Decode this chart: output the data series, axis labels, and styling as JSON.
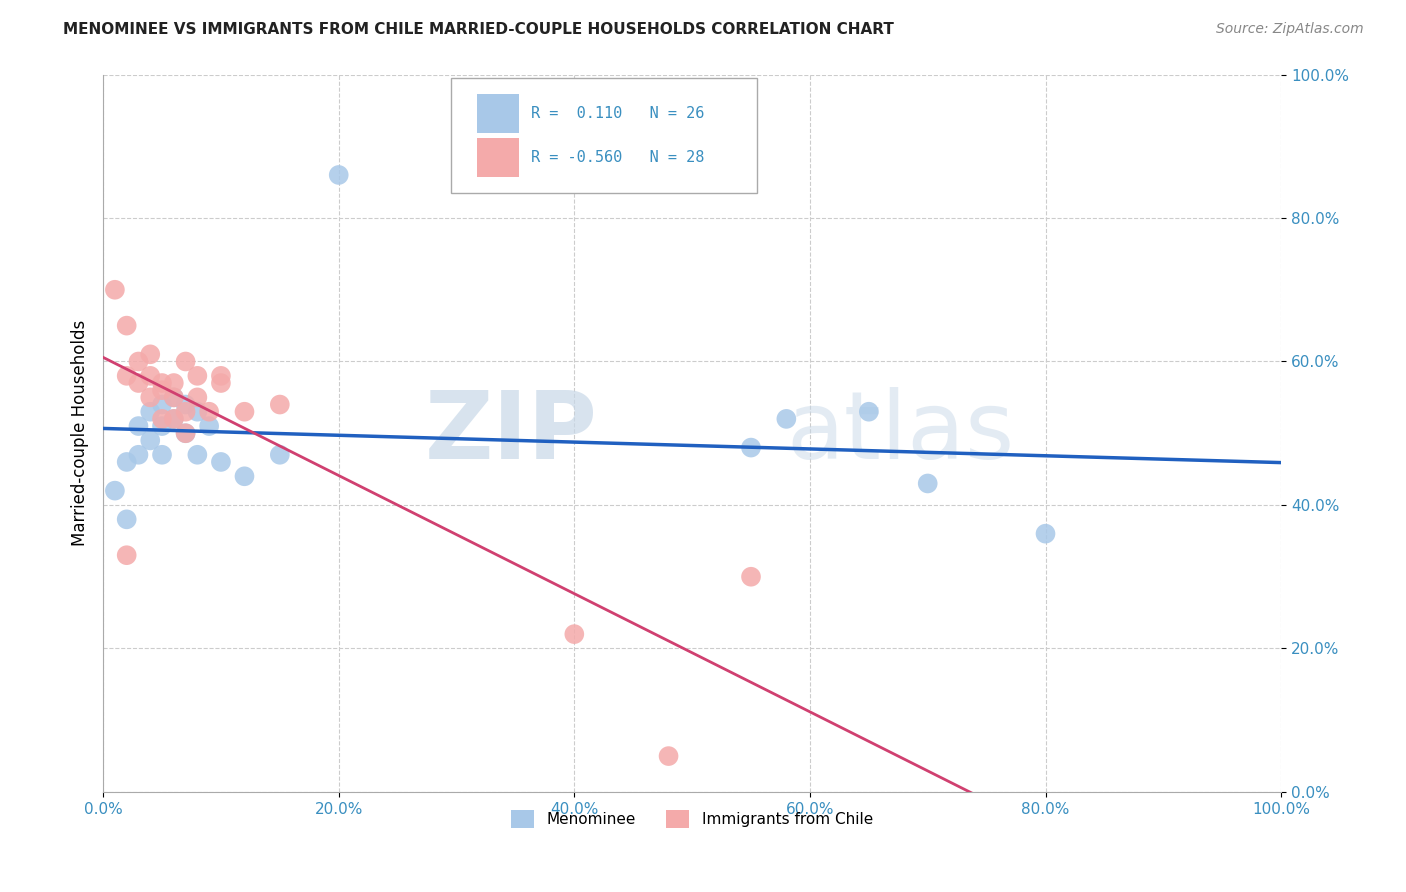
{
  "title": "MENOMINEE VS IMMIGRANTS FROM CHILE MARRIED-COUPLE HOUSEHOLDS CORRELATION CHART",
  "source": "Source: ZipAtlas.com",
  "ylabel": "Married-couple Households",
  "legend_label1": "Menominee",
  "legend_label2": "Immigrants from Chile",
  "R1": 0.11,
  "N1": 26,
  "R2": -0.56,
  "N2": 28,
  "blue_color": "#a8c8e8",
  "pink_color": "#f4aaaa",
  "blue_line_color": "#2060c0",
  "pink_line_color": "#d04070",
  "blue_scatter": [
    [
      0.01,
      0.42
    ],
    [
      0.02,
      0.46
    ],
    [
      0.02,
      0.38
    ],
    [
      0.03,
      0.51
    ],
    [
      0.03,
      0.47
    ],
    [
      0.04,
      0.53
    ],
    [
      0.04,
      0.49
    ],
    [
      0.05,
      0.54
    ],
    [
      0.05,
      0.51
    ],
    [
      0.05,
      0.47
    ],
    [
      0.06,
      0.55
    ],
    [
      0.06,
      0.52
    ],
    [
      0.07,
      0.54
    ],
    [
      0.07,
      0.5
    ],
    [
      0.08,
      0.53
    ],
    [
      0.08,
      0.47
    ],
    [
      0.09,
      0.51
    ],
    [
      0.1,
      0.46
    ],
    [
      0.12,
      0.44
    ],
    [
      0.15,
      0.47
    ],
    [
      0.2,
      0.86
    ],
    [
      0.55,
      0.48
    ],
    [
      0.58,
      0.52
    ],
    [
      0.65,
      0.53
    ],
    [
      0.7,
      0.43
    ],
    [
      0.8,
      0.36
    ]
  ],
  "pink_scatter": [
    [
      0.01,
      0.7
    ],
    [
      0.02,
      0.65
    ],
    [
      0.02,
      0.58
    ],
    [
      0.03,
      0.6
    ],
    [
      0.03,
      0.57
    ],
    [
      0.04,
      0.58
    ],
    [
      0.04,
      0.55
    ],
    [
      0.04,
      0.61
    ],
    [
      0.05,
      0.57
    ],
    [
      0.05,
      0.52
    ],
    [
      0.05,
      0.56
    ],
    [
      0.06,
      0.57
    ],
    [
      0.06,
      0.52
    ],
    [
      0.06,
      0.55
    ],
    [
      0.07,
      0.5
    ],
    [
      0.07,
      0.53
    ],
    [
      0.07,
      0.6
    ],
    [
      0.08,
      0.55
    ],
    [
      0.08,
      0.58
    ],
    [
      0.09,
      0.53
    ],
    [
      0.1,
      0.57
    ],
    [
      0.1,
      0.58
    ],
    [
      0.12,
      0.53
    ],
    [
      0.15,
      0.54
    ],
    [
      0.02,
      0.33
    ],
    [
      0.4,
      0.22
    ],
    [
      0.48,
      0.05
    ],
    [
      0.55,
      0.3
    ]
  ],
  "xlim": [
    0.0,
    1.0
  ],
  "ylim": [
    0.0,
    1.0
  ],
  "watermark_zip": "ZIP",
  "watermark_atlas": "atlas",
  "figsize": [
    14.06,
    8.92
  ],
  "dpi": 100
}
